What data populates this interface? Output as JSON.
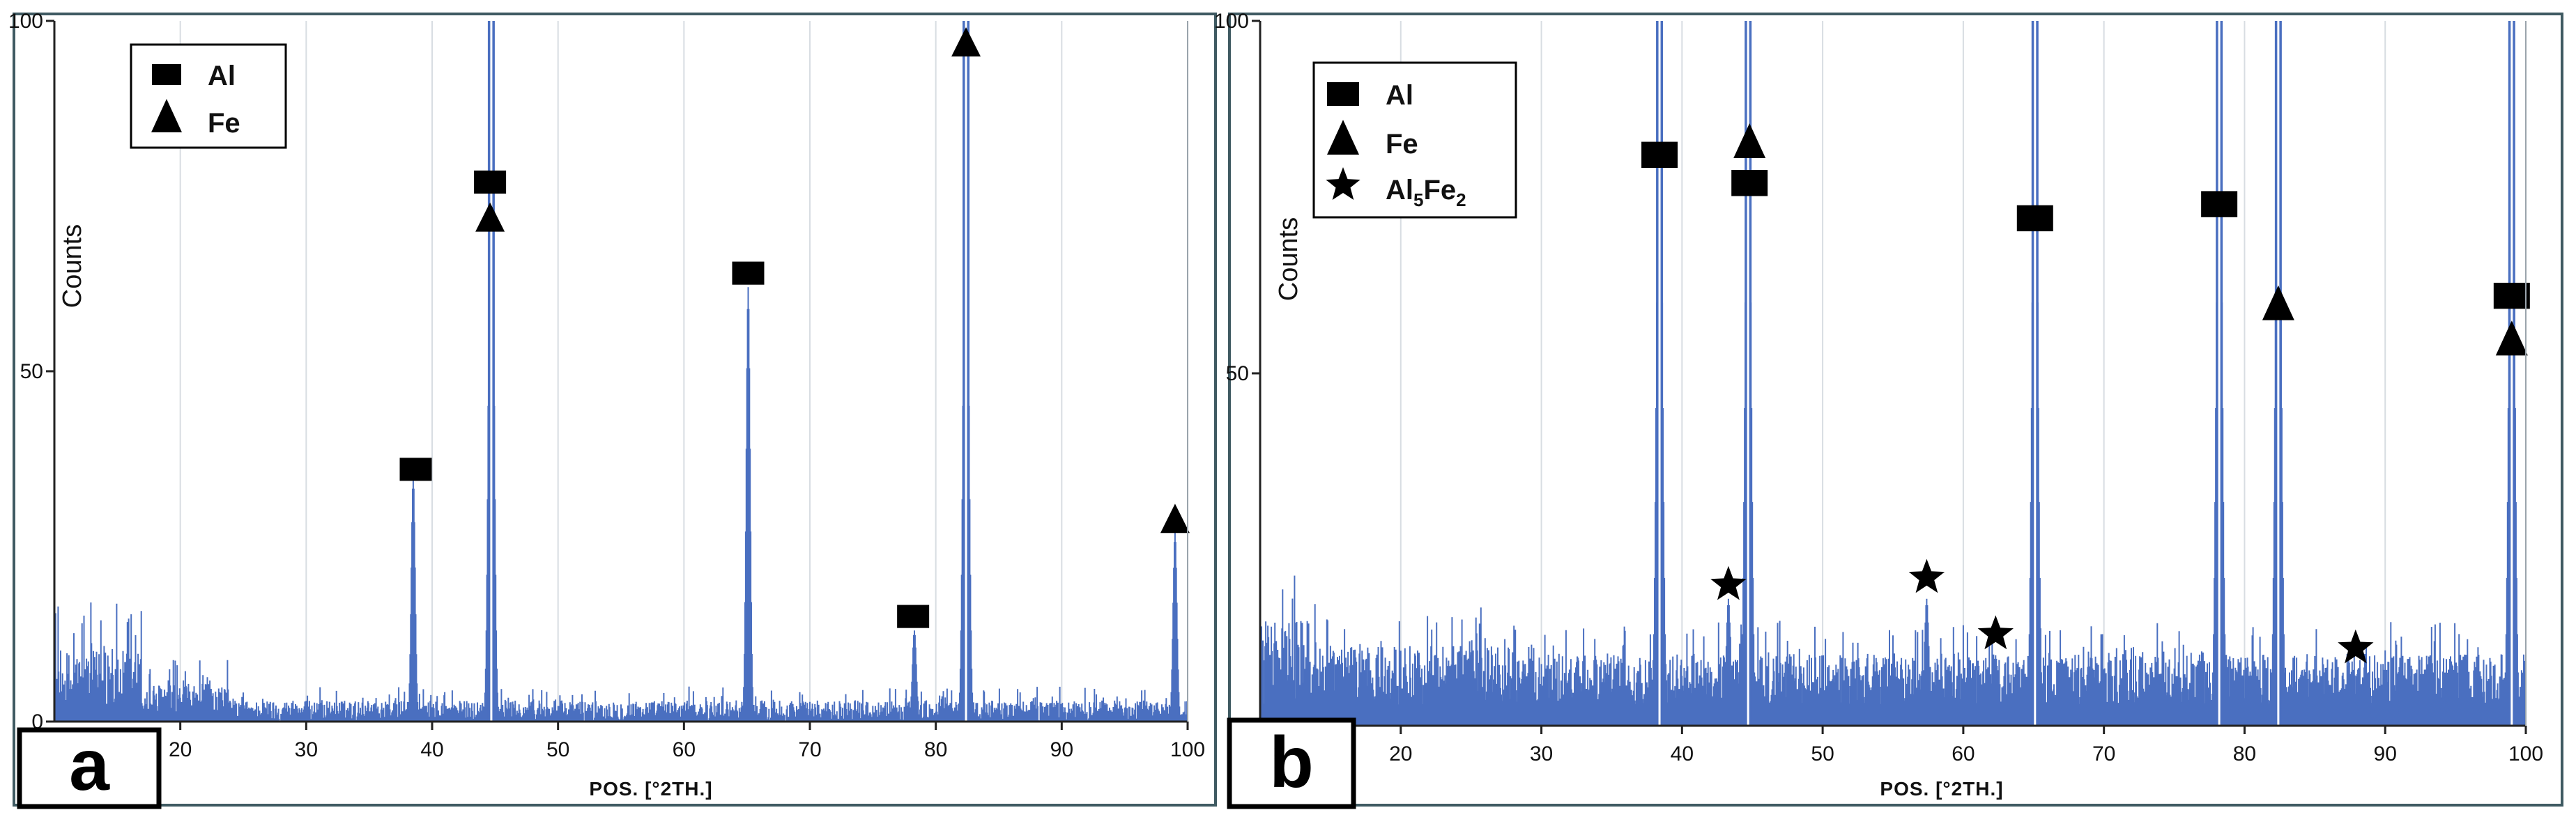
{
  "panels": [
    {
      "label": "a",
      "ylabel": "Counts",
      "xlabel": "POS. [°2TH.]"
    },
    {
      "label": "b",
      "ylabel": "Counts",
      "xlabel": "POS. [°2TH.]"
    }
  ],
  "chart_data": [
    {
      "type": "line",
      "panel": "a",
      "ylabel": "Counts",
      "xlabel": "POS. [°2TH.]",
      "xlim": [
        10,
        100
      ],
      "ylim": [
        0,
        100
      ],
      "xticks": [
        20,
        30,
        40,
        50,
        60,
        70,
        80,
        90,
        100
      ],
      "yticks": [
        0,
        50,
        100
      ],
      "grid": "vertical",
      "legend_position": "top-left",
      "legend": [
        {
          "label": "Al",
          "marker": "square"
        },
        {
          "label": "Fe",
          "marker": "triangle"
        }
      ],
      "series_color": "#4a6fc0",
      "baseline_noise": {
        "x_range": [
          10,
          100
        ],
        "typical_counts": 4,
        "max_counts_below_20": 17
      },
      "peaks": [
        {
          "x": 38.5,
          "y": 35
        },
        {
          "x": 44.7,
          "y": 100
        },
        {
          "x": 65.1,
          "y": 62
        },
        {
          "x": 78.3,
          "y": 13
        },
        {
          "x": 82.4,
          "y": 100
        },
        {
          "x": 99.0,
          "y": 27
        }
      ],
      "markers": [
        {
          "phase": "Al",
          "shape": "square",
          "x": 38.7,
          "y": 36
        },
        {
          "phase": "Al",
          "shape": "square",
          "x": 44.6,
          "y": 77
        },
        {
          "phase": "Fe",
          "shape": "triangle",
          "x": 44.6,
          "y": 72
        },
        {
          "phase": "Al",
          "shape": "square",
          "x": 65.1,
          "y": 64
        },
        {
          "phase": "Al",
          "shape": "square",
          "x": 78.2,
          "y": 15
        },
        {
          "phase": "Fe",
          "shape": "triangle",
          "x": 82.4,
          "y": 97
        },
        {
          "phase": "Fe",
          "shape": "triangle",
          "x": 99.0,
          "y": 29
        }
      ]
    },
    {
      "type": "line",
      "panel": "b",
      "ylabel": "Counts",
      "xlabel": "POS. [°2TH.]",
      "xlim": [
        10,
        100
      ],
      "ylim": [
        0,
        100
      ],
      "xticks": [
        20,
        30,
        40,
        50,
        60,
        70,
        80,
        90,
        100
      ],
      "yticks": [
        0,
        50,
        100
      ],
      "grid": "vertical",
      "legend_position": "top-left",
      "legend": [
        {
          "label": "Al",
          "marker": "square"
        },
        {
          "label": "Fe",
          "marker": "triangle"
        },
        {
          "label": "Al5Fe2",
          "label_main": "Al",
          "label_sub1": "5",
          "label_mid": "Fe",
          "label_sub2": "2",
          "marker": "star"
        }
      ],
      "series_color": "#4a6fc0",
      "baseline_noise": {
        "x_range": [
          10,
          100
        ],
        "typical_counts": 9,
        "max_counts": 20
      },
      "peaks": [
        {
          "x": 38.4,
          "y": 100
        },
        {
          "x": 44.7,
          "y": 100
        },
        {
          "x": 65.1,
          "y": 100
        },
        {
          "x": 78.2,
          "y": 100
        },
        {
          "x": 82.4,
          "y": 100
        },
        {
          "x": 99.0,
          "y": 100
        },
        {
          "x": 43.3,
          "y": 18
        },
        {
          "x": 57.4,
          "y": 18
        },
        {
          "x": 62.3,
          "y": 10
        },
        {
          "x": 87.4,
          "y": 9
        }
      ],
      "markers": [
        {
          "phase": "Al",
          "shape": "square",
          "x": 38.4,
          "y": 81
        },
        {
          "phase": "Fe",
          "shape": "triangle",
          "x": 44.8,
          "y": 83
        },
        {
          "phase": "Al",
          "shape": "square",
          "x": 44.8,
          "y": 77
        },
        {
          "phase": "Al",
          "shape": "square",
          "x": 65.1,
          "y": 72
        },
        {
          "phase": "Al",
          "shape": "square",
          "x": 78.2,
          "y": 74
        },
        {
          "phase": "Fe",
          "shape": "triangle",
          "x": 82.4,
          "y": 60
        },
        {
          "phase": "Al",
          "shape": "square",
          "x": 99.0,
          "y": 61
        },
        {
          "phase": "Fe",
          "shape": "triangle",
          "x": 99.0,
          "y": 55
        },
        {
          "phase": "Al5Fe2",
          "shape": "star",
          "x": 43.3,
          "y": 20
        },
        {
          "phase": "Al5Fe2",
          "shape": "star",
          "x": 57.4,
          "y": 21
        },
        {
          "phase": "Al5Fe2",
          "shape": "star",
          "x": 62.3,
          "y": 13
        },
        {
          "phase": "Al5Fe2",
          "shape": "star",
          "x": 87.9,
          "y": 11
        }
      ]
    }
  ]
}
